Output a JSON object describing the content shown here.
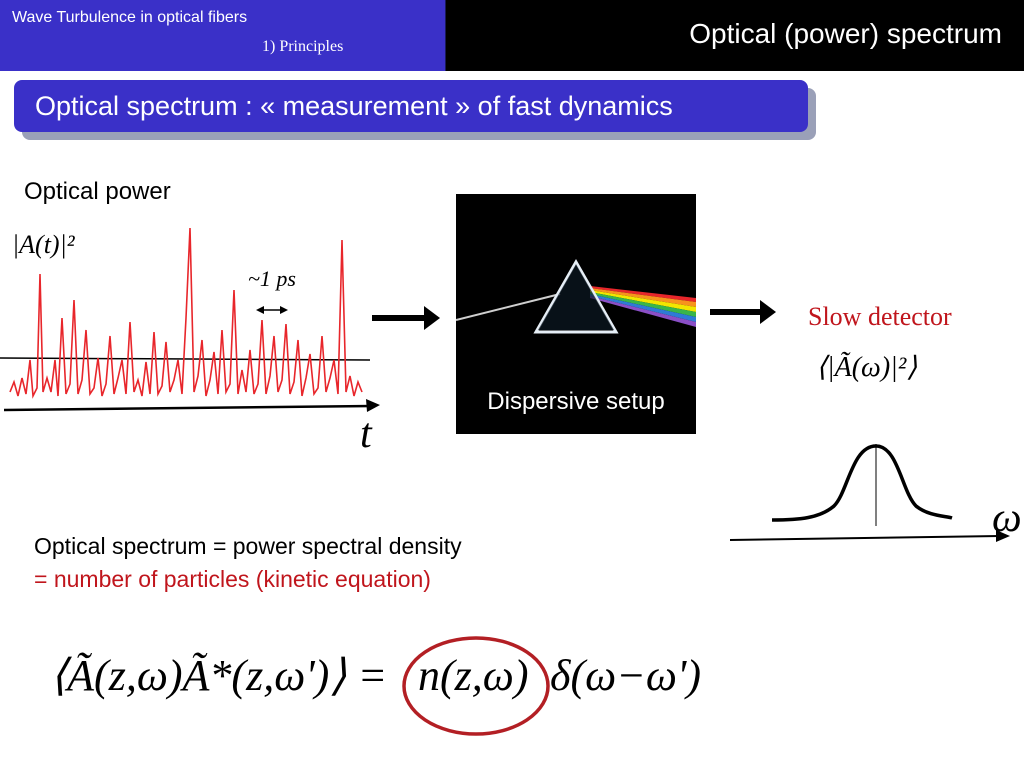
{
  "header": {
    "course_title": "Wave Turbulence in optical fibers",
    "section": "1) Principles",
    "slide_title": "Optical (power) spectrum"
  },
  "banner": {
    "text": "Optical spectrum :  « measurement » of fast dynamics"
  },
  "left_panel": {
    "label": "Optical power",
    "formula": "|A(t)|²",
    "timescale": "~1 ps",
    "axis_label": "t"
  },
  "middle_panel": {
    "caption": "Dispersive setup"
  },
  "right_panel": {
    "label": "Slow detector",
    "formula": "⟨|Ã(ω)|²⟩",
    "axis_label": "ω"
  },
  "text_block": {
    "line1": "Optical spectrum = power spectral density",
    "line2": " = number of particles (kinetic equation)"
  },
  "equation": {
    "lhs": "⟨Ã(z,ω)Ã*(z,ω')⟩ =",
    "highlight": "n(z,ω)",
    "rhs": "δ(ω−ω')"
  },
  "colors": {
    "header_blue": "#3a30c8",
    "header_black": "#000000",
    "signal_red": "#e8262b",
    "highlight_text": "#c0151c",
    "circle": "#b31f24"
  }
}
